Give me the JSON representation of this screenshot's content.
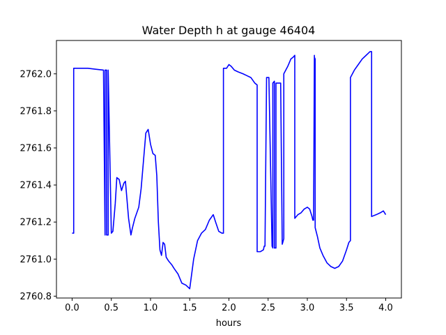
{
  "chart_data": {
    "type": "line",
    "title": "Water Depth h at gauge 46404",
    "xlabel": "hours",
    "ylabel": "",
    "xlim": [
      -0.2,
      4.2
    ],
    "ylim": [
      2760.79,
      2762.18
    ],
    "xticks": [
      0.0,
      0.5,
      1.0,
      1.5,
      2.0,
      2.5,
      3.0,
      3.5,
      4.0
    ],
    "xtick_labels": [
      "0.0",
      "0.5",
      "1.0",
      "1.5",
      "2.0",
      "2.5",
      "3.0",
      "3.5",
      "4.0"
    ],
    "yticks": [
      2760.8,
      2761.0,
      2761.2,
      2761.4,
      2761.6,
      2761.8,
      2762.0
    ],
    "ytick_labels": [
      "2760.8",
      "2761.0",
      "2761.2",
      "2761.4",
      "2761.6",
      "2761.8",
      "2762.0"
    ],
    "grid": false,
    "series": [
      {
        "color": "#0000ff",
        "x": [
          0.0,
          0.02,
          0.02,
          0.1,
          0.2,
          0.3,
          0.4,
          0.42,
          0.42,
          0.44,
          0.44,
          0.46,
          0.46,
          0.5,
          0.52,
          0.55,
          0.57,
          0.6,
          0.63,
          0.66,
          0.68,
          0.7,
          0.72,
          0.75,
          0.77,
          0.8,
          0.85,
          0.88,
          0.91,
          0.94,
          0.97,
          1.0,
          1.03,
          1.06,
          1.08,
          1.1,
          1.12,
          1.14,
          1.16,
          1.18,
          1.2,
          1.23,
          1.27,
          1.3,
          1.35,
          1.4,
          1.45,
          1.5,
          1.55,
          1.6,
          1.65,
          1.7,
          1.75,
          1.8,
          1.83,
          1.87,
          1.91,
          1.93,
          1.93,
          1.97,
          2.0,
          2.03,
          2.07,
          2.12,
          2.18,
          2.23,
          2.28,
          2.33,
          2.36,
          2.36,
          2.4,
          2.44,
          2.45,
          2.46,
          2.48,
          2.48,
          2.51,
          2.55,
          2.56,
          2.56,
          2.58,
          2.58,
          2.6,
          2.6,
          2.63,
          2.66,
          2.68,
          2.68,
          2.7,
          2.7,
          2.75,
          2.79,
          2.82,
          2.84,
          2.84,
          2.88,
          2.92,
          2.96,
          3.0,
          3.03,
          3.06,
          3.07,
          3.08,
          3.09,
          3.09,
          3.1,
          3.1,
          3.13,
          3.16,
          3.2,
          3.25,
          3.3,
          3.35,
          3.4,
          3.45,
          3.5,
          3.53,
          3.55,
          3.55,
          3.6,
          3.65,
          3.7,
          3.75,
          3.8,
          3.82,
          3.82,
          3.88,
          3.93,
          3.97,
          4.0
        ],
        "y": [
          2761.14,
          2761.14,
          2762.03,
          2762.03,
          2762.03,
          2762.025,
          2762.02,
          2761.13,
          2762.02,
          2762.02,
          2761.13,
          2761.13,
          2762.02,
          2761.14,
          2761.15,
          2761.3,
          2761.44,
          2761.43,
          2761.37,
          2761.41,
          2761.42,
          2761.32,
          2761.22,
          2761.13,
          2761.17,
          2761.22,
          2761.28,
          2761.38,
          2761.53,
          2761.68,
          2761.7,
          2761.62,
          2761.57,
          2761.56,
          2761.45,
          2761.2,
          2761.05,
          2761.02,
          2761.09,
          2761.08,
          2761.01,
          2760.99,
          2760.97,
          2760.95,
          2760.92,
          2760.87,
          2760.86,
          2760.84,
          2761.0,
          2761.1,
          2761.14,
          2761.16,
          2761.21,
          2761.24,
          2761.2,
          2761.15,
          2761.14,
          2761.14,
          2762.03,
          2762.03,
          2762.05,
          2762.04,
          2762.02,
          2762.01,
          2762.0,
          2761.99,
          2761.98,
          2761.95,
          2761.94,
          2761.04,
          2761.04,
          2761.05,
          2761.07,
          2761.07,
          2761.97,
          2761.98,
          2761.98,
          2761.07,
          2761.06,
          2761.95,
          2761.96,
          2761.06,
          2761.06,
          2761.95,
          2761.95,
          2761.95,
          2761.08,
          2761.08,
          2761.11,
          2762.0,
          2762.04,
          2762.08,
          2762.09,
          2762.1,
          2761.22,
          2761.24,
          2761.25,
          2761.27,
          2761.28,
          2761.27,
          2761.23,
          2761.21,
          2761.21,
          2762.1,
          2762.09,
          2762.08,
          2761.17,
          2761.12,
          2761.06,
          2761.02,
          2760.98,
          2760.96,
          2760.95,
          2760.96,
          2760.99,
          2761.05,
          2761.09,
          2761.1,
          2761.98,
          2762.02,
          2762.05,
          2762.08,
          2762.1,
          2762.12,
          2762.12,
          2761.23,
          2761.24,
          2761.25,
          2761.26,
          2761.24
        ]
      }
    ]
  }
}
